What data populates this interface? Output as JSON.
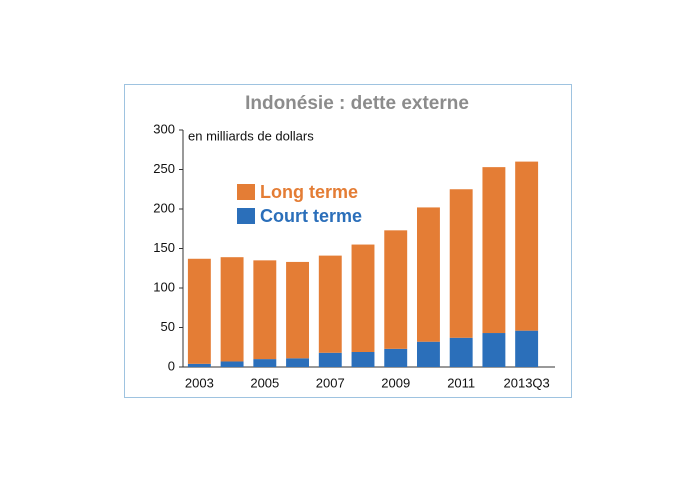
{
  "chart_data": {
    "type": "stacked_bar",
    "title": "Indonésie : dette externe",
    "y_axis_label": "en milliards de dollars",
    "categories": [
      "2003",
      null,
      "2005",
      null,
      "2007",
      null,
      "2009",
      null,
      "2011",
      null,
      "2013Q3"
    ],
    "series": [
      {
        "name": "Court terme",
        "color": "#2b6fba",
        "values": [
          4,
          7,
          10,
          11,
          18,
          19,
          23,
          32,
          37,
          43,
          46
        ]
      },
      {
        "name": "Long terme",
        "color": "#e47d35",
        "values": [
          133,
          132,
          125,
          122,
          123,
          136,
          150,
          170,
          188,
          210,
          214
        ]
      }
    ],
    "ylim": [
      0,
      300
    ],
    "yticks": [
      0,
      50,
      100,
      150,
      200,
      250,
      300
    ],
    "grid": false
  }
}
